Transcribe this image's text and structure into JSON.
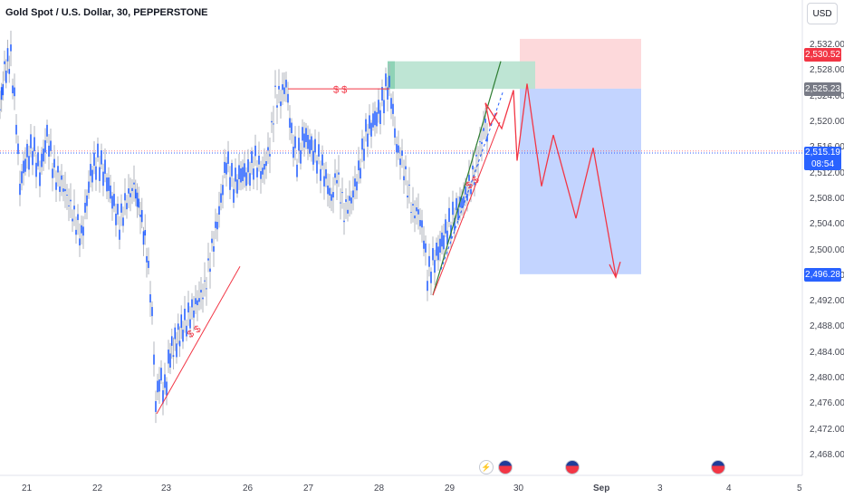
{
  "header": {
    "title": "Gold Spot / U.S. Dollar, 30, PEPPERSTONE",
    "currency_button": "USD"
  },
  "colors": {
    "up": "#2962ff",
    "down": "#2962ff",
    "wick": "#b2b5be",
    "red": "#f23645",
    "green": "#089981",
    "blue_zone": "#b8ccff",
    "red_zone": "#fdd9db",
    "green_zone": "#b7e2cf",
    "current": "#2962ff"
  },
  "chart_data": {
    "type": "line",
    "title": "Gold Spot / U.S. Dollar, 30, PEPPERSTONE",
    "xlabel": "",
    "ylabel": "",
    "ylim": [
      2466,
      2534
    ],
    "y_ticks": [
      "2,532.00",
      "2,528.00",
      "2,524.00",
      "2,520.00",
      "2,516.00",
      "2,512.00",
      "2,508.00",
      "2,504.00",
      "2,500.00",
      "2,496.00",
      "2,492.00",
      "2,488.00",
      "2,484.00",
      "2,480.00",
      "2,476.00",
      "2,472.00",
      "2,468.00"
    ],
    "x_ticks": [
      "21",
      "22",
      "23",
      "26",
      "27",
      "28",
      "29",
      "30",
      "Sep",
      "3",
      "4",
      "5"
    ],
    "series": [
      {
        "x": [
          "21",
          "22",
          "23",
          "26",
          "27",
          "28",
          "29"
        ],
        "values": [
          2512,
          2508,
          2484,
          2512,
          2514,
          2520,
          2506
        ]
      }
    ],
    "price_path": [
      [
        0,
        2522
      ],
      [
        5,
        2528
      ],
      [
        12,
        2530
      ],
      [
        18,
        2520
      ],
      [
        22,
        2510
      ],
      [
        28,
        2514
      ],
      [
        36,
        2516
      ],
      [
        44,
        2512
      ],
      [
        52,
        2518
      ],
      [
        60,
        2512
      ],
      [
        70,
        2510
      ],
      [
        80,
        2506
      ],
      [
        90,
        2502
      ],
      [
        100,
        2512
      ],
      [
        108,
        2514
      ],
      [
        116,
        2512
      ],
      [
        124,
        2508
      ],
      [
        132,
        2504
      ],
      [
        140,
        2508
      ],
      [
        148,
        2510
      ],
      [
        155,
        2506
      ],
      [
        162,
        2500
      ],
      [
        168,
        2490
      ],
      [
        172,
        2476
      ],
      [
        176,
        2480
      ],
      [
        182,
        2478
      ],
      [
        188,
        2484
      ],
      [
        195,
        2486
      ],
      [
        202,
        2488
      ],
      [
        210,
        2490
      ],
      [
        218,
        2492
      ],
      [
        226,
        2494
      ],
      [
        234,
        2500
      ],
      [
        242,
        2506
      ],
      [
        250,
        2514
      ],
      [
        258,
        2510
      ],
      [
        266,
        2512
      ],
      [
        274,
        2512
      ],
      [
        282,
        2514
      ],
      [
        290,
        2512
      ],
      [
        298,
        2516
      ],
      [
        304,
        2524
      ],
      [
        310,
        2524
      ],
      [
        316,
        2526
      ],
      [
        322,
        2518
      ],
      [
        328,
        2514
      ],
      [
        336,
        2518
      ],
      [
        344,
        2516
      ],
      [
        352,
        2514
      ],
      [
        358,
        2512
      ],
      [
        366,
        2508
      ],
      [
        372,
        2512
      ],
      [
        380,
        2506
      ],
      [
        388,
        2508
      ],
      [
        396,
        2512
      ],
      [
        404,
        2518
      ],
      [
        412,
        2520
      ],
      [
        420,
        2522
      ],
      [
        428,
        2526
      ],
      [
        432,
        2524
      ],
      [
        438,
        2516
      ],
      [
        444,
        2514
      ],
      [
        450,
        2510
      ],
      [
        456,
        2506
      ],
      [
        462,
        2506
      ],
      [
        468,
        2502
      ],
      [
        472,
        2496
      ],
      [
        478,
        2498
      ],
      [
        484,
        2500
      ],
      [
        490,
        2502
      ],
      [
        496,
        2504
      ],
      [
        504,
        2506
      ],
      [
        512,
        2508
      ],
      [
        518,
        2510
      ],
      [
        524,
        2512
      ],
      [
        530,
        2516
      ],
      [
        536,
        2520
      ],
      [
        540,
        2516
      ]
    ],
    "price_labels": [
      {
        "label": "2,530.52",
        "value": 2530.52,
        "kind": "target"
      },
      {
        "label": "2,525.23",
        "value": 2525.23,
        "kind": "entry"
      },
      {
        "label": "2,515.19",
        "value": 2515.19,
        "kind": "current",
        "sub": "08:54"
      },
      {
        "label": "2,496.28",
        "value": 2496.28,
        "kind": "stop"
      }
    ],
    "annotations": [
      {
        "text": "$ $"
      },
      {
        "text": "$ $"
      },
      {
        "text": "$ $"
      }
    ]
  },
  "events": [
    {
      "icon": "lightning-icon"
    },
    {
      "icon": "us-flag-icon"
    },
    {
      "icon": "us-flag-icon"
    },
    {
      "icon": "us-flag-icon"
    }
  ]
}
